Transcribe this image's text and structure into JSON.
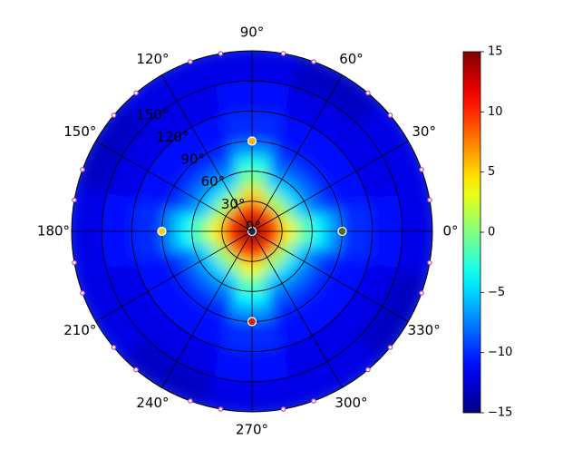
{
  "chart_data": {
    "type": "polar_heatmap",
    "theta_bins": [
      -15,
      15,
      45,
      75,
      105,
      135,
      165,
      195,
      225,
      255,
      285,
      315,
      345
    ],
    "r_bins": [
      0,
      15,
      30,
      45,
      60,
      75,
      90,
      120,
      150,
      180
    ],
    "values": [
      [
        14,
        14,
        14,
        14,
        14,
        14,
        14,
        14,
        14,
        14,
        14,
        14
      ],
      [
        11,
        9,
        9,
        11,
        9,
        9,
        11,
        9,
        9,
        11,
        9,
        9
      ],
      [
        4,
        1,
        1,
        5,
        1,
        1,
        4,
        1,
        1,
        4,
        1,
        1
      ],
      [
        -1,
        -5,
        -5,
        0,
        -5,
        -5,
        -1,
        -5,
        -5,
        -1,
        -5,
        -5
      ],
      [
        -4,
        -8,
        -8,
        -3,
        -8,
        -8,
        -4,
        -8,
        -8,
        -4,
        -8,
        -8
      ],
      [
        -7,
        -10,
        -10,
        -7,
        -10,
        -10,
        -7,
        -10,
        -10,
        -7,
        -10,
        -10
      ],
      [
        -10,
        -11,
        -11,
        -10,
        -11,
        -11,
        -10,
        -11,
        -11,
        -10,
        -11,
        -11
      ],
      [
        -11,
        -12,
        -12,
        -11,
        -12,
        -12,
        -11,
        -12,
        -12,
        -11,
        -12,
        -12
      ],
      [
        -12,
        -12,
        -13,
        -12,
        -12,
        -13,
        -12,
        -12,
        -13,
        -12,
        -12,
        -13
      ]
    ],
    "rlim": [
      0,
      180
    ],
    "rticks": [
      {
        "value": 0,
        "label": "0°"
      },
      {
        "value": 30,
        "label": "30°"
      },
      {
        "value": 60,
        "label": "60°"
      },
      {
        "value": 90,
        "label": "90°"
      },
      {
        "value": 120,
        "label": "120°"
      },
      {
        "value": 150,
        "label": "150°"
      }
    ],
    "thetaticks": [
      {
        "value": 0,
        "label": "0°"
      },
      {
        "value": 30,
        "label": "30°"
      },
      {
        "value": 60,
        "label": "60°"
      },
      {
        "value": 90,
        "label": "90°"
      },
      {
        "value": 120,
        "label": "120°"
      },
      {
        "value": 150,
        "label": "150°"
      },
      {
        "value": 180,
        "label": "180°"
      },
      {
        "value": 210,
        "label": "210°"
      },
      {
        "value": 240,
        "label": "240°"
      },
      {
        "value": 270,
        "label": "270°"
      },
      {
        "value": 300,
        "label": "300°"
      },
      {
        "value": 330,
        "label": "330°"
      }
    ],
    "rlabel_position": 132,
    "colormap": "jet",
    "clim": [
      -15,
      15
    ],
    "colorbar_ticks": [
      {
        "value": -15,
        "label": "−15"
      },
      {
        "value": -10,
        "label": "−10"
      },
      {
        "value": -5,
        "label": "−5"
      },
      0,
      5,
      10,
      15
    ],
    "markers": [
      {
        "theta": 90,
        "r": 90,
        "color": "#f5b21c"
      },
      {
        "theta": 0,
        "r": 90,
        "color": "#4f6b2a"
      },
      {
        "theta": 180,
        "r": 90,
        "color": "#f2d21a"
      },
      {
        "theta": 270,
        "r": 90,
        "color": "#c8281c"
      },
      {
        "theta": 0,
        "r": 0,
        "color": "#1c2450"
      }
    ],
    "rim_markers": {
      "r": 180,
      "color": "#b048c0",
      "theta": [
        10,
        20,
        40,
        50,
        70,
        80,
        100,
        110,
        130,
        140,
        160,
        170,
        190,
        200,
        220,
        230,
        250,
        260,
        280,
        290,
        310,
        320,
        340,
        350
      ]
    },
    "grid": true
  }
}
